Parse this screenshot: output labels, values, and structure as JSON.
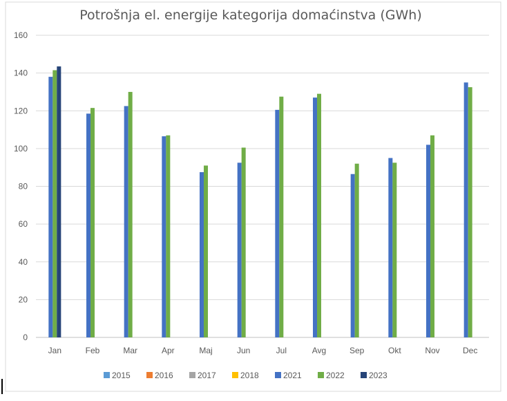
{
  "chart_data": {
    "type": "bar",
    "title": "Potrošnja el. energije kategorija domaćinstva (GWh)",
    "xlabel": "",
    "ylabel": "",
    "ylim": [
      0,
      160
    ],
    "yticks": [
      0,
      20,
      40,
      60,
      80,
      100,
      120,
      140,
      160
    ],
    "grid": true,
    "legend_position": "bottom",
    "categories": [
      "Jan",
      "Feb",
      "Mar",
      "Apr",
      "Maj",
      "Jun",
      "Jul",
      "Avg",
      "Sep",
      "Okt",
      "Nov",
      "Dec"
    ],
    "series": [
      {
        "name": "2015",
        "color": "#5b9bd5",
        "values": [
          null,
          null,
          null,
          null,
          null,
          null,
          null,
          null,
          null,
          null,
          null,
          null
        ]
      },
      {
        "name": "2016",
        "color": "#ed7d31",
        "values": [
          null,
          null,
          null,
          null,
          null,
          null,
          null,
          null,
          null,
          null,
          null,
          null
        ]
      },
      {
        "name": "2017",
        "color": "#a5a5a5",
        "values": [
          null,
          null,
          null,
          null,
          null,
          null,
          null,
          null,
          null,
          null,
          null,
          null
        ]
      },
      {
        "name": "2018",
        "color": "#ffc000",
        "values": [
          null,
          null,
          null,
          null,
          null,
          null,
          null,
          null,
          null,
          null,
          null,
          null
        ]
      },
      {
        "name": "2021",
        "color": "#4472c4",
        "values": [
          138,
          118.5,
          122.5,
          106.5,
          87.5,
          92.5,
          120.5,
          127,
          86.5,
          95,
          102,
          135
        ]
      },
      {
        "name": "2022",
        "color": "#70ad47",
        "values": [
          141.5,
          121.5,
          130,
          107,
          91,
          100.5,
          127.5,
          129,
          92,
          92.5,
          107,
          132.5
        ]
      },
      {
        "name": "2023",
        "color": "#264478",
        "values": [
          143.5,
          null,
          null,
          null,
          null,
          null,
          null,
          null,
          null,
          null,
          null,
          null
        ]
      }
    ]
  }
}
